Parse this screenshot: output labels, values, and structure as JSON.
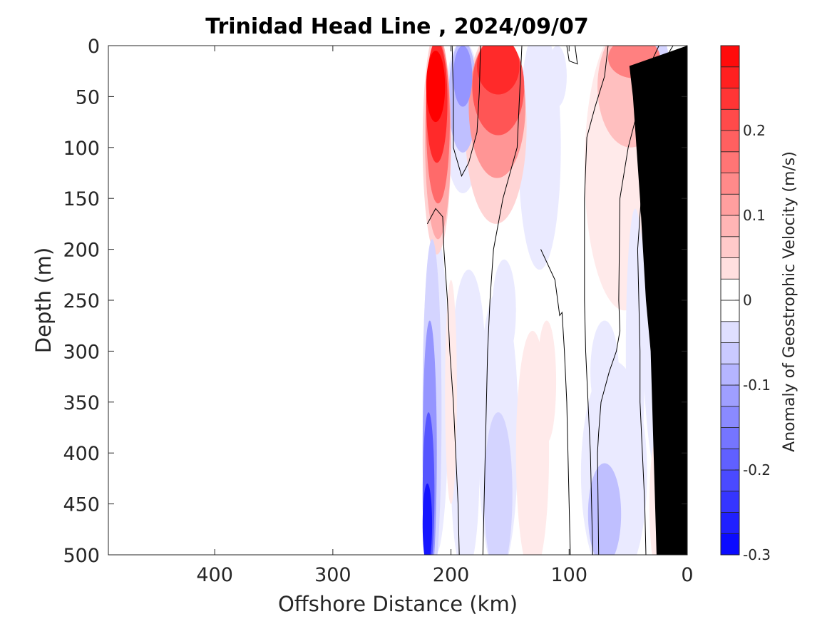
{
  "chart_data": {
    "type": "heatmap",
    "title": "Trinidad Head Line , 2024/09/07",
    "xlabel": "Offshore Distance (km)",
    "ylabel": "Depth (m)",
    "xlim": [
      490,
      0
    ],
    "ylim": [
      0,
      500
    ],
    "x_reversed": true,
    "y_reversed": true,
    "xticks": [
      400,
      300,
      200,
      100,
      0
    ],
    "yticks": [
      0,
      50,
      100,
      150,
      200,
      250,
      300,
      350,
      400,
      450,
      500
    ],
    "grid": false,
    "data_x_range": [
      220,
      0
    ],
    "colorbar": {
      "label": "Anomaly of Geostrophic Velocity (m/s)",
      "range": [
        -0.3,
        0.3
      ],
      "step": 0.025,
      "ticks": [
        0.2,
        0.1,
        0,
        -0.1,
        -0.2,
        -0.3
      ],
      "positive_color": "#ff0000",
      "negative_color": "#0000ff",
      "zero_color": "#ffffff"
    },
    "zero_contours": [
      {
        "points": [
          [
            220,
            175
          ],
          [
            213,
            160
          ],
          [
            207,
            168
          ],
          [
            206,
            200
          ],
          [
            203,
            250
          ],
          [
            201,
            300
          ],
          [
            198,
            350
          ],
          [
            196,
            400
          ],
          [
            194,
            450
          ],
          [
            193,
            500
          ]
        ]
      },
      {
        "points": [
          [
            199,
            0
          ],
          [
            198,
            50
          ],
          [
            198,
            100
          ],
          [
            191,
            128
          ],
          [
            185,
            115
          ],
          [
            178,
            85
          ],
          [
            176,
            45
          ],
          [
            175,
            0
          ]
        ]
      },
      {
        "points": [
          [
            140,
            0
          ],
          [
            142,
            50
          ],
          [
            144,
            100
          ],
          [
            156,
            150
          ],
          [
            164,
            200
          ],
          [
            167,
            250
          ],
          [
            169,
            300
          ],
          [
            170,
            350
          ],
          [
            171,
            400
          ],
          [
            172,
            450
          ],
          [
            173,
            500
          ]
        ]
      },
      {
        "points": [
          [
            102,
            0
          ],
          [
            100,
            15
          ],
          [
            93,
            18
          ],
          [
            95,
            0
          ]
        ]
      },
      {
        "points": [
          [
            124,
            200
          ],
          [
            112,
            230
          ],
          [
            108,
            265
          ],
          [
            106,
            262
          ],
          [
            104,
            300
          ],
          [
            102,
            350
          ],
          [
            101,
            400
          ],
          [
            100,
            450
          ],
          [
            99,
            500
          ]
        ]
      },
      {
        "points": [
          [
            67,
            0
          ],
          [
            70,
            30
          ],
          [
            78,
            60
          ],
          [
            85,
            90
          ],
          [
            87,
            150
          ],
          [
            87,
            250
          ],
          [
            86,
            300
          ],
          [
            85,
            325
          ],
          [
            82,
            400
          ],
          [
            81,
            450
          ],
          [
            80,
            500
          ]
        ]
      },
      {
        "points": [
          [
            24,
            0
          ],
          [
            32,
            20
          ],
          [
            40,
            55
          ],
          [
            50,
            100
          ],
          [
            57,
            150
          ],
          [
            58,
            250
          ],
          [
            57,
            280
          ],
          [
            60,
            300
          ],
          [
            66,
            320
          ],
          [
            73,
            350
          ],
          [
            75,
            380
          ],
          [
            76,
            400
          ],
          [
            75,
            500
          ]
        ]
      },
      {
        "points": [
          [
            12,
            0
          ],
          [
            20,
            15
          ],
          [
            26,
            50
          ],
          [
            32,
            100
          ],
          [
            39,
            150
          ],
          [
            42,
            200
          ],
          [
            41,
            250
          ],
          [
            40,
            300
          ],
          [
            40,
            350
          ],
          [
            38,
            400
          ],
          [
            36,
            450
          ],
          [
            35,
            500
          ]
        ]
      },
      {
        "points": [
          [
            22,
            250
          ],
          [
            22,
            300
          ],
          [
            21,
            350
          ],
          [
            21,
            400
          ]
        ]
      }
    ],
    "bathymetry": {
      "color": "#000000",
      "points": [
        [
          0,
          0
        ],
        [
          0,
          500
        ],
        [
          26,
          500
        ],
        [
          31,
          300
        ],
        [
          35,
          250
        ],
        [
          40,
          150
        ],
        [
          46,
          50
        ],
        [
          49,
          20
        ]
      ]
    },
    "anomaly_patches": [
      {
        "value": 0.3,
        "cx": 213,
        "cy": 40,
        "rx": 8,
        "ry": 35
      },
      {
        "value": 0.25,
        "cx": 212,
        "cy": 55,
        "rx": 9,
        "ry": 60
      },
      {
        "value": 0.175,
        "cx": 211,
        "cy": 75,
        "rx": 10,
        "ry": 80
      },
      {
        "value": 0.1,
        "cx": 211,
        "cy": 90,
        "rx": 11,
        "ry": 100
      },
      {
        "value": 0.05,
        "cx": 212,
        "cy": 95,
        "rx": 12,
        "ry": 110
      },
      {
        "value": 0.25,
        "cx": 160,
        "cy": 20,
        "rx": 18,
        "ry": 28
      },
      {
        "value": 0.2,
        "cx": 160,
        "cy": 40,
        "rx": 22,
        "ry": 48
      },
      {
        "value": 0.125,
        "cx": 161,
        "cy": 60,
        "rx": 24,
        "ry": 70
      },
      {
        "value": 0.05,
        "cx": 162,
        "cy": 80,
        "rx": 26,
        "ry": 95
      },
      {
        "value": 0.15,
        "cx": 45,
        "cy": 12,
        "rx": 22,
        "ry": 20
      },
      {
        "value": 0.075,
        "cx": 48,
        "cy": 40,
        "rx": 28,
        "ry": 60
      },
      {
        "value": 0.025,
        "cx": 53,
        "cy": 120,
        "rx": 34,
        "ry": 140
      },
      {
        "value": -0.125,
        "cx": 190,
        "cy": 30,
        "rx": 8,
        "ry": 30
      },
      {
        "value": -0.075,
        "cx": 190,
        "cy": 50,
        "rx": 12,
        "ry": 55
      },
      {
        "value": -0.025,
        "cx": 190,
        "cy": 70,
        "rx": 16,
        "ry": 75
      },
      {
        "value": -0.025,
        "cx": 125,
        "cy": 100,
        "rx": 18,
        "ry": 120
      },
      {
        "value": -0.025,
        "cx": 110,
        "cy": 30,
        "rx": 8,
        "ry": 30
      },
      {
        "value": -0.05,
        "cx": 22,
        "cy": 80,
        "rx": 10,
        "ry": 90
      },
      {
        "value": -0.025,
        "cx": 25,
        "cy": 220,
        "rx": 14,
        "ry": 200
      },
      {
        "value": -0.275,
        "cx": 220,
        "cy": 470,
        "rx": 4,
        "ry": 40
      },
      {
        "value": -0.2,
        "cx": 219,
        "cy": 440,
        "rx": 5,
        "ry": 80
      },
      {
        "value": -0.125,
        "cx": 218,
        "cy": 400,
        "rx": 6,
        "ry": 130
      },
      {
        "value": -0.05,
        "cx": 216,
        "cy": 360,
        "rx": 8,
        "ry": 170
      },
      {
        "value": -0.025,
        "cx": 213,
        "cy": 340,
        "rx": 11,
        "ry": 160
      },
      {
        "value": -0.025,
        "cx": 188,
        "cy": 420,
        "rx": 12,
        "ry": 100
      },
      {
        "value": -0.025,
        "cx": 185,
        "cy": 310,
        "rx": 14,
        "ry": 90
      },
      {
        "value": -0.05,
        "cx": 160,
        "cy": 440,
        "rx": 12,
        "ry": 80
      },
      {
        "value": -0.025,
        "cx": 160,
        "cy": 380,
        "rx": 17,
        "ry": 140
      },
      {
        "value": -0.025,
        "cx": 155,
        "cy": 260,
        "rx": 10,
        "ry": 50
      },
      {
        "value": 0.025,
        "cx": 131,
        "cy": 400,
        "rx": 14,
        "ry": 120
      },
      {
        "value": 0.025,
        "cx": 119,
        "cy": 330,
        "rx": 8,
        "ry": 60
      },
      {
        "value": 0.025,
        "cx": 200,
        "cy": 340,
        "rx": 5,
        "ry": 110
      },
      {
        "value": -0.075,
        "cx": 70,
        "cy": 460,
        "rx": 14,
        "ry": 50
      },
      {
        "value": -0.025,
        "cx": 62,
        "cy": 420,
        "rx": 28,
        "ry": 110
      },
      {
        "value": -0.025,
        "cx": 70,
        "cy": 320,
        "rx": 12,
        "ry": 50
      },
      {
        "value": -0.025,
        "cx": 44,
        "cy": 300,
        "rx": 8,
        "ry": 140
      },
      {
        "value": 0.025,
        "cx": 27,
        "cy": 450,
        "rx": 5,
        "ry": 60
      }
    ]
  }
}
